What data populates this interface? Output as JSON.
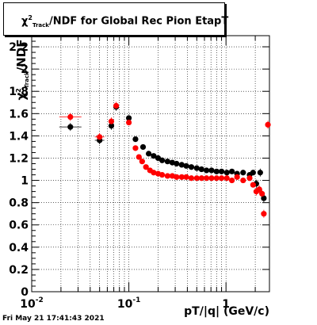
{
  "title": {
    "chi": "χ",
    "sup": "2",
    "sub": "Track",
    "rest": "/NDF for Global Rec Pion EtapT"
  },
  "ylabel": {
    "chi": "χ",
    "sup": "2",
    "sub": "Track",
    "rest": "/NDF"
  },
  "xlabel": "pT/|q| (GeV/c)",
  "footer": "Fri May 21 17:41:43 2021",
  "chart_data": {
    "type": "scatter",
    "title": "χ²_Track/NDF for Global Rec Pion EtapT",
    "xlabel": "pT/|q| (GeV/c)",
    "ylabel": "χ²_Track/NDF",
    "xscale": "log",
    "xlim": [
      0.01,
      2.8
    ],
    "ylim": [
      0,
      2.3
    ],
    "grid": true,
    "x_ticks": [
      {
        "v": 0.01,
        "label": "10",
        "exp": "-2"
      },
      {
        "v": 0.1,
        "label": "10",
        "exp": "-1"
      },
      {
        "v": 1,
        "label": "1",
        "exp": ""
      }
    ],
    "y_ticks": [
      0,
      0.2,
      0.4,
      0.6,
      0.8,
      1,
      1.2,
      1.4,
      1.6,
      1.8,
      2,
      2.2
    ],
    "y_tick_labels": [
      "0",
      "0.2",
      "0.4",
      "0.6",
      "0.8",
      "1",
      "1.2",
      "1.4",
      "1.6",
      "1.8",
      "2",
      "2.2"
    ],
    "series": [
      {
        "color": "#000000",
        "x": [
          0.025,
          0.05,
          0.066,
          0.074,
          0.1,
          0.117,
          0.14,
          0.16,
          0.18,
          0.2,
          0.22,
          0.25,
          0.28,
          0.31,
          0.35,
          0.39,
          0.44,
          0.5,
          0.56,
          0.63,
          0.71,
          0.8,
          0.9,
          1.02,
          1.15,
          1.3,
          1.5,
          1.75,
          1.9,
          2.05,
          2.25,
          2.45
        ],
        "y": [
          1.48,
          1.36,
          1.49,
          1.66,
          1.56,
          1.37,
          1.3,
          1.24,
          1.22,
          1.2,
          1.18,
          1.17,
          1.16,
          1.15,
          1.14,
          1.13,
          1.12,
          1.11,
          1.1,
          1.09,
          1.09,
          1.08,
          1.08,
          1.07,
          1.08,
          1.06,
          1.07,
          1.05,
          1.07,
          0.97,
          1.07,
          0.84
        ]
      },
      {
        "color": "#ff0000",
        "x": [
          0.025,
          0.05,
          0.066,
          0.074,
          0.1,
          0.117,
          0.127,
          0.137,
          0.15,
          0.165,
          0.18,
          0.2,
          0.22,
          0.25,
          0.28,
          0.31,
          0.35,
          0.39,
          0.44,
          0.5,
          0.56,
          0.63,
          0.71,
          0.8,
          0.9,
          1.02,
          1.15,
          1.3,
          1.5,
          1.75,
          1.9,
          2.05,
          2.2,
          2.35,
          2.45,
          2.7
        ],
        "y": [
          1.57,
          1.39,
          1.53,
          1.67,
          1.52,
          1.29,
          1.21,
          1.17,
          1.12,
          1.09,
          1.07,
          1.06,
          1.05,
          1.04,
          1.04,
          1.03,
          1.03,
          1.03,
          1.02,
          1.02,
          1.02,
          1.02,
          1.02,
          1.02,
          1.02,
          1.02,
          1.0,
          1.03,
          1.0,
          1.02,
          0.96,
          0.9,
          0.92,
          0.88,
          0.7,
          1.5
        ]
      }
    ]
  }
}
